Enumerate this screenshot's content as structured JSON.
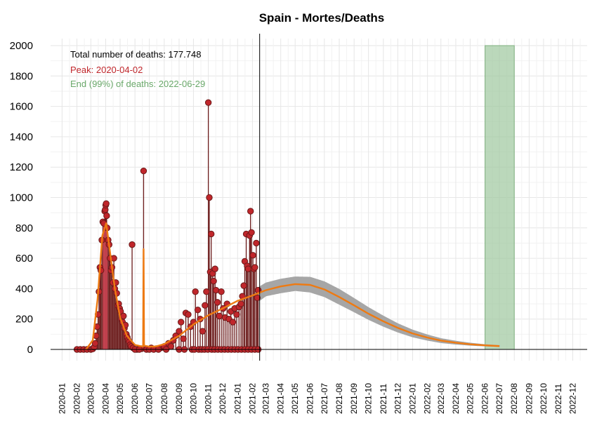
{
  "chart_data": {
    "type": "line",
    "title": "Spain - Mortes/Deaths",
    "xlabel": "",
    "ylabel": "",
    "ylim": [
      0,
      2000
    ],
    "xlim": [
      "2019-12-08",
      "2022-12-31"
    ],
    "yticks": [
      0,
      200,
      400,
      600,
      800,
      1000,
      1200,
      1400,
      1600,
      1800,
      2000
    ],
    "xticks": [
      "2020-01",
      "2020-02",
      "2020-03",
      "2020-04",
      "2020-05",
      "2020-06",
      "2020-07",
      "2020-08",
      "2020-09",
      "2020-10",
      "2020-11",
      "2020-12",
      "2021-01",
      "2021-02",
      "2021-03",
      "2021-04",
      "2021-05",
      "2021-06",
      "2021-07",
      "2021-08",
      "2021-09",
      "2021-10",
      "2021-11",
      "2021-12",
      "2022-01",
      "2022-02",
      "2022-03",
      "2022-04",
      "2022-05",
      "2022-06",
      "2022-07",
      "2022-08",
      "2022-09",
      "2022-10",
      "2022-11",
      "2022-12"
    ],
    "grid": true,
    "annotations": {
      "total": "Total number of deaths: 177.748",
      "peak": "Peak: 2020-04-02",
      "end": "End (99%) of deaths: 2022-06-29"
    },
    "colors": {
      "points": "#c0262b",
      "point_edge": "#6b1a1a",
      "stems": "#6b1a1a",
      "fit": "#ee7a12",
      "band": "#a6a6a6",
      "peak_bar": "#d64a5a",
      "end_region": "#9ec89e",
      "total_text": "#000000",
      "peak_text": "#c0262b",
      "end_text": "#6aa86a"
    },
    "last_observed_date": "2021-02-16",
    "peak_bar": {
      "from": "2020-03-26",
      "to": "2020-04-05",
      "value": 830
    },
    "end_region": {
      "from": "2022-06-01",
      "to": "2022-08-01"
    },
    "observed": [
      [
        "2020-02-01",
        0
      ],
      [
        "2020-02-08",
        0
      ],
      [
        "2020-02-15",
        0
      ],
      [
        "2020-02-22",
        0
      ],
      [
        "2020-03-01",
        0
      ],
      [
        "2020-03-05",
        3
      ],
      [
        "2020-03-08",
        15
      ],
      [
        "2020-03-10",
        40
      ],
      [
        "2020-03-12",
        90
      ],
      [
        "2020-03-14",
        150
      ],
      [
        "2020-03-16",
        230
      ],
      [
        "2020-03-18",
        380
      ],
      [
        "2020-03-20",
        540
      ],
      [
        "2020-03-22",
        520
      ],
      [
        "2020-03-24",
        720
      ],
      [
        "2020-03-26",
        840
      ],
      [
        "2020-03-28",
        830
      ],
      [
        "2020-03-30",
        910
      ],
      [
        "2020-03-31",
        920
      ],
      [
        "2020-04-01",
        950
      ],
      [
        "2020-04-02",
        960
      ],
      [
        "2020-04-03",
        880
      ],
      [
        "2020-04-04",
        800
      ],
      [
        "2020-04-06",
        720
      ],
      [
        "2020-04-08",
        690
      ],
      [
        "2020-04-10",
        600
      ],
      [
        "2020-04-12",
        520
      ],
      [
        "2020-04-14",
        540
      ],
      [
        "2020-04-16",
        440
      ],
      [
        "2020-04-18",
        600
      ],
      [
        "2020-04-20",
        400
      ],
      [
        "2020-04-22",
        440
      ],
      [
        "2020-04-24",
        370
      ],
      [
        "2020-04-26",
        290
      ],
      [
        "2020-04-28",
        300
      ],
      [
        "2020-04-30",
        270
      ],
      [
        "2020-05-02",
        250
      ],
      [
        "2020-05-04",
        200
      ],
      [
        "2020-05-06",
        180
      ],
      [
        "2020-05-08",
        220
      ],
      [
        "2020-05-10",
        140
      ],
      [
        "2020-05-12",
        160
      ],
      [
        "2020-05-14",
        100
      ],
      [
        "2020-05-16",
        80
      ],
      [
        "2020-05-18",
        60
      ],
      [
        "2020-05-20",
        50
      ],
      [
        "2020-05-22",
        30
      ],
      [
        "2020-05-24",
        20
      ],
      [
        "2020-05-26",
        690
      ],
      [
        "2020-05-28",
        10
      ],
      [
        "2020-06-05",
        0
      ],
      [
        "2020-06-15",
        5
      ],
      [
        "2020-06-19",
        1175
      ],
      [
        "2020-06-25",
        0
      ],
      [
        "2020-07-05",
        10
      ],
      [
        "2020-07-15",
        5
      ],
      [
        "2020-07-25",
        10
      ],
      [
        "2020-08-01",
        20
      ],
      [
        "2020-08-10",
        40
      ],
      [
        "2020-08-15",
        20
      ],
      [
        "2020-08-20",
        60
      ],
      [
        "2020-08-25",
        90
      ],
      [
        "2020-09-01",
        120
      ],
      [
        "2020-09-05",
        180
      ],
      [
        "2020-09-10",
        70
      ],
      [
        "2020-09-15",
        240
      ],
      [
        "2020-09-20",
        230
      ],
      [
        "2020-09-25",
        150
      ],
      [
        "2020-10-01",
        180
      ],
      [
        "2020-10-05",
        380
      ],
      [
        "2020-10-10",
        260
      ],
      [
        "2020-10-15",
        200
      ],
      [
        "2020-10-20",
        120
      ],
      [
        "2020-10-25",
        290
      ],
      [
        "2020-10-28",
        380
      ],
      [
        "2020-11-01",
        1625
      ],
      [
        "2020-11-03",
        1000
      ],
      [
        "2020-11-05",
        510
      ],
      [
        "2020-11-07",
        760
      ],
      [
        "2020-11-10",
        500
      ],
      [
        "2020-11-12",
        450
      ],
      [
        "2020-11-15",
        530
      ],
      [
        "2020-11-17",
        390
      ],
      [
        "2020-11-20",
        310
      ],
      [
        "2020-11-24",
        220
      ],
      [
        "2020-11-28",
        380
      ],
      [
        "2020-12-02",
        270
      ],
      [
        "2020-12-06",
        210
      ],
      [
        "2020-12-10",
        300
      ],
      [
        "2020-12-14",
        200
      ],
      [
        "2020-12-18",
        250
      ],
      [
        "2020-12-22",
        180
      ],
      [
        "2020-12-26",
        270
      ],
      [
        "2020-12-30",
        230
      ],
      [
        "2021-01-04",
        280
      ],
      [
        "2021-01-08",
        300
      ],
      [
        "2021-01-11",
        350
      ],
      [
        "2021-01-14",
        420
      ],
      [
        "2021-01-16",
        580
      ],
      [
        "2021-01-19",
        760
      ],
      [
        "2021-01-21",
        550
      ],
      [
        "2021-01-23",
        530
      ],
      [
        "2021-01-26",
        750
      ],
      [
        "2021-01-28",
        910
      ],
      [
        "2021-01-30",
        770
      ],
      [
        "2021-02-02",
        620
      ],
      [
        "2021-02-04",
        530
      ],
      [
        "2021-02-06",
        540
      ],
      [
        "2021-02-09",
        700
      ],
      [
        "2021-02-11",
        340
      ],
      [
        "2021-02-13",
        390
      ]
    ],
    "zero_markers": [
      "2020-06-01",
      "2020-06-10",
      "2020-07-01",
      "2020-07-10",
      "2020-07-20",
      "2020-08-05",
      "2020-09-01",
      "2020-09-12",
      "2020-09-28",
      "2020-10-03",
      "2020-10-12",
      "2020-10-18",
      "2020-10-24",
      "2020-10-31",
      "2020-11-08",
      "2020-11-14",
      "2020-11-21",
      "2020-11-28",
      "2020-12-05",
      "2020-12-12",
      "2020-12-19",
      "2020-12-26",
      "2021-01-02",
      "2021-01-09",
      "2021-01-16",
      "2021-01-23",
      "2021-01-30",
      "2021-02-06",
      "2021-02-13"
    ],
    "fit": [
      [
        "2020-02-20",
        0
      ],
      [
        "2020-03-05",
        60
      ],
      [
        "2020-03-15",
        330
      ],
      [
        "2020-03-25",
        750
      ],
      [
        "2020-04-02",
        830
      ],
      [
        "2020-04-10",
        640
      ],
      [
        "2020-04-20",
        400
      ],
      [
        "2020-05-01",
        210
      ],
      [
        "2020-05-15",
        90
      ],
      [
        "2020-06-01",
        30
      ],
      [
        "2020-06-15",
        20
      ],
      [
        "2020-06-18",
        20
      ],
      [
        "2020-06-19",
        660
      ],
      [
        "2020-06-20",
        25
      ],
      [
        "2020-07-01",
        18
      ],
      [
        "2020-07-15",
        20
      ],
      [
        "2020-08-01",
        35
      ],
      [
        "2020-09-01",
        90
      ],
      [
        "2020-10-01",
        165
      ],
      [
        "2020-11-01",
        225
      ],
      [
        "2020-12-01",
        270
      ],
      [
        "2021-01-01",
        320
      ],
      [
        "2021-02-01",
        355
      ],
      [
        "2021-03-01",
        390
      ],
      [
        "2021-04-01",
        415
      ],
      [
        "2021-05-01",
        430
      ],
      [
        "2021-06-01",
        425
      ],
      [
        "2021-07-01",
        395
      ],
      [
        "2021-08-01",
        345
      ],
      [
        "2021-09-01",
        290
      ],
      [
        "2021-10-01",
        235
      ],
      [
        "2021-11-01",
        185
      ],
      [
        "2021-12-01",
        142
      ],
      [
        "2022-01-01",
        105
      ],
      [
        "2022-02-01",
        78
      ],
      [
        "2022-03-01",
        58
      ],
      [
        "2022-04-01",
        44
      ],
      [
        "2022-05-01",
        34
      ],
      [
        "2022-06-01",
        27
      ],
      [
        "2022-07-01",
        22
      ]
    ],
    "band": [
      [
        "2021-02-16",
        320,
        415
      ],
      [
        "2021-03-01",
        350,
        440
      ],
      [
        "2021-04-01",
        370,
        465
      ],
      [
        "2021-05-01",
        385,
        480
      ],
      [
        "2021-06-01",
        375,
        478
      ],
      [
        "2021-07-01",
        345,
        448
      ],
      [
        "2021-08-01",
        295,
        398
      ],
      [
        "2021-09-01",
        245,
        338
      ],
      [
        "2021-10-01",
        195,
        278
      ],
      [
        "2021-11-01",
        150,
        222
      ],
      [
        "2021-12-01",
        112,
        172
      ],
      [
        "2022-01-01",
        80,
        130
      ],
      [
        "2022-02-01",
        58,
        98
      ],
      [
        "2022-03-01",
        42,
        74
      ],
      [
        "2022-04-01",
        32,
        57
      ],
      [
        "2022-05-01",
        25,
        44
      ],
      [
        "2022-06-01",
        20,
        34
      ],
      [
        "2022-07-01",
        17,
        28
      ]
    ]
  }
}
